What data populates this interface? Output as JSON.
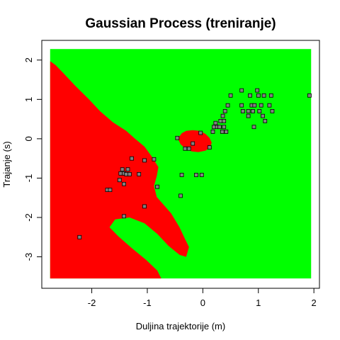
{
  "chart_data": {
    "type": "scatter",
    "title": "Gaussian Process (treniranje)",
    "xlabel": "Duljina trajektorije (m)",
    "ylabel": "Trajanje (s)",
    "xlim": [
      -2.9,
      2.1
    ],
    "ylim": [
      -3.8,
      2.5
    ],
    "xticks": [
      "-2",
      "-1",
      "0",
      "1",
      "2"
    ],
    "yticks": [
      "-3",
      "-2",
      "-1",
      "0",
      "1",
      "2"
    ],
    "xtick_values": [
      -2,
      -1,
      0,
      1,
      2
    ],
    "ytick_values": [
      -3,
      -2,
      -1,
      0,
      1,
      2
    ],
    "grid": false,
    "legend": "none",
    "colors": {
      "region_class_a": "#ff0000",
      "region_class_b": "#00ff00",
      "point_fill": "#808080",
      "point_stroke": "#000000"
    },
    "decision_regions": {
      "extent": {
        "x": [
          -2.75,
          1.95
        ],
        "y": [
          -3.55,
          2.28
        ]
      },
      "background": "region_class_b",
      "regions": [
        {
          "fill": "region_class_a",
          "polygon": [
            [
              -2.75,
              1.97
            ],
            [
              -2.65,
              1.87
            ],
            [
              -2.5,
              1.65
            ],
            [
              -2.3,
              1.35
            ],
            [
              -2.05,
              1.0
            ],
            [
              -1.85,
              0.7
            ],
            [
              -1.62,
              0.42
            ],
            [
              -1.38,
              0.2
            ],
            [
              -1.22,
              0.0
            ],
            [
              -1.05,
              -0.2
            ],
            [
              -0.92,
              -0.45
            ],
            [
              -0.8,
              -0.72
            ],
            [
              -0.83,
              -0.95
            ],
            [
              -0.88,
              -1.2
            ],
            [
              -0.83,
              -1.48
            ],
            [
              -0.68,
              -1.72
            ],
            [
              -0.57,
              -1.9
            ],
            [
              -0.42,
              -2.25
            ],
            [
              -0.32,
              -2.55
            ],
            [
              -0.25,
              -2.75
            ],
            [
              -0.3,
              -3.0
            ],
            [
              -0.42,
              -2.95
            ],
            [
              -0.62,
              -2.72
            ],
            [
              -0.82,
              -2.42
            ],
            [
              -1.05,
              -2.15
            ],
            [
              -1.32,
              -2.0
            ],
            [
              -1.58,
              -2.05
            ],
            [
              -1.68,
              -2.25
            ],
            [
              -1.52,
              -2.48
            ],
            [
              -1.28,
              -2.78
            ],
            [
              -1.02,
              -3.08
            ],
            [
              -0.82,
              -3.35
            ],
            [
              -0.75,
              -3.55
            ],
            [
              -2.75,
              -3.55
            ]
          ]
        },
        {
          "fill": "region_class_a",
          "polygon": [
            [
              -0.45,
              0.0
            ],
            [
              -0.38,
              0.14
            ],
            [
              -0.3,
              0.2
            ],
            [
              -0.18,
              0.22
            ],
            [
              -0.05,
              0.2
            ],
            [
              0.05,
              0.12
            ],
            [
              0.12,
              0.02
            ],
            [
              0.16,
              -0.1
            ],
            [
              0.13,
              -0.22
            ],
            [
              0.05,
              -0.3
            ],
            [
              -0.08,
              -0.34
            ],
            [
              -0.2,
              -0.32
            ],
            [
              -0.32,
              -0.24
            ],
            [
              -0.4,
              -0.14
            ]
          ]
        }
      ]
    },
    "points": [
      {
        "x": -2.22,
        "y": -2.5
      },
      {
        "x": -1.72,
        "y": -1.3
      },
      {
        "x": -1.67,
        "y": -1.3
      },
      {
        "x": -1.5,
        "y": -1.05
      },
      {
        "x": -1.48,
        "y": -0.88
      },
      {
        "x": -1.45,
        "y": -0.78
      },
      {
        "x": -1.42,
        "y": -0.88
      },
      {
        "x": -1.42,
        "y": -1.15
      },
      {
        "x": -1.38,
        "y": -0.9
      },
      {
        "x": -1.35,
        "y": -0.78
      },
      {
        "x": -1.32,
        "y": -0.9
      },
      {
        "x": -1.28,
        "y": -0.5
      },
      {
        "x": -1.42,
        "y": -1.97
      },
      {
        "x": -1.15,
        "y": -0.9
      },
      {
        "x": -1.05,
        "y": -0.55
      },
      {
        "x": -1.05,
        "y": -1.72
      },
      {
        "x": -0.88,
        "y": -0.52
      },
      {
        "x": -0.82,
        "y": -1.22
      },
      {
        "x": -0.46,
        "y": 0.02
      },
      {
        "x": -0.4,
        "y": -1.45
      },
      {
        "x": -0.38,
        "y": -0.92
      },
      {
        "x": -0.32,
        "y": -0.25
      },
      {
        "x": -0.25,
        "y": -0.25
      },
      {
        "x": -0.18,
        "y": -0.12
      },
      {
        "x": -0.12,
        "y": -0.92
      },
      {
        "x": -0.02,
        "y": -0.92
      },
      {
        "x": -0.04,
        "y": 0.15
      },
      {
        "x": 0.12,
        "y": -0.22
      },
      {
        "x": 0.18,
        "y": 0.18
      },
      {
        "x": 0.2,
        "y": 0.3
      },
      {
        "x": 0.23,
        "y": 0.4
      },
      {
        "x": 0.26,
        "y": 0.3
      },
      {
        "x": 0.3,
        "y": 0.3
      },
      {
        "x": 0.32,
        "y": 0.45
      },
      {
        "x": 0.35,
        "y": 0.18
      },
      {
        "x": 0.36,
        "y": 0.58
      },
      {
        "x": 0.38,
        "y": 0.45
      },
      {
        "x": 0.38,
        "y": 0.3
      },
      {
        "x": 0.4,
        "y": 0.7
      },
      {
        "x": 0.42,
        "y": 0.18
      },
      {
        "x": 0.45,
        "y": 0.85
      },
      {
        "x": 0.5,
        "y": 1.1
      },
      {
        "x": 0.7,
        "y": 0.85
      },
      {
        "x": 0.7,
        "y": 1.23
      },
      {
        "x": 0.72,
        "y": 0.7
      },
      {
        "x": 0.82,
        "y": 0.7
      },
      {
        "x": 0.82,
        "y": 0.58
      },
      {
        "x": 0.85,
        "y": 1.1
      },
      {
        "x": 0.88,
        "y": 0.85
      },
      {
        "x": 0.9,
        "y": 0.7
      },
      {
        "x": 0.92,
        "y": 0.3
      },
      {
        "x": 0.93,
        "y": 0.85
      },
      {
        "x": 0.98,
        "y": 1.23
      },
      {
        "x": 1.0,
        "y": 1.1
      },
      {
        "x": 1.02,
        "y": 0.7
      },
      {
        "x": 1.05,
        "y": 0.85
      },
      {
        "x": 1.08,
        "y": 0.58
      },
      {
        "x": 1.1,
        "y": 1.1
      },
      {
        "x": 1.12,
        "y": 0.45
      },
      {
        "x": 1.2,
        "y": 0.85
      },
      {
        "x": 1.23,
        "y": 1.1
      },
      {
        "x": 1.25,
        "y": 0.7
      },
      {
        "x": 1.92,
        "y": 1.1
      }
    ]
  }
}
